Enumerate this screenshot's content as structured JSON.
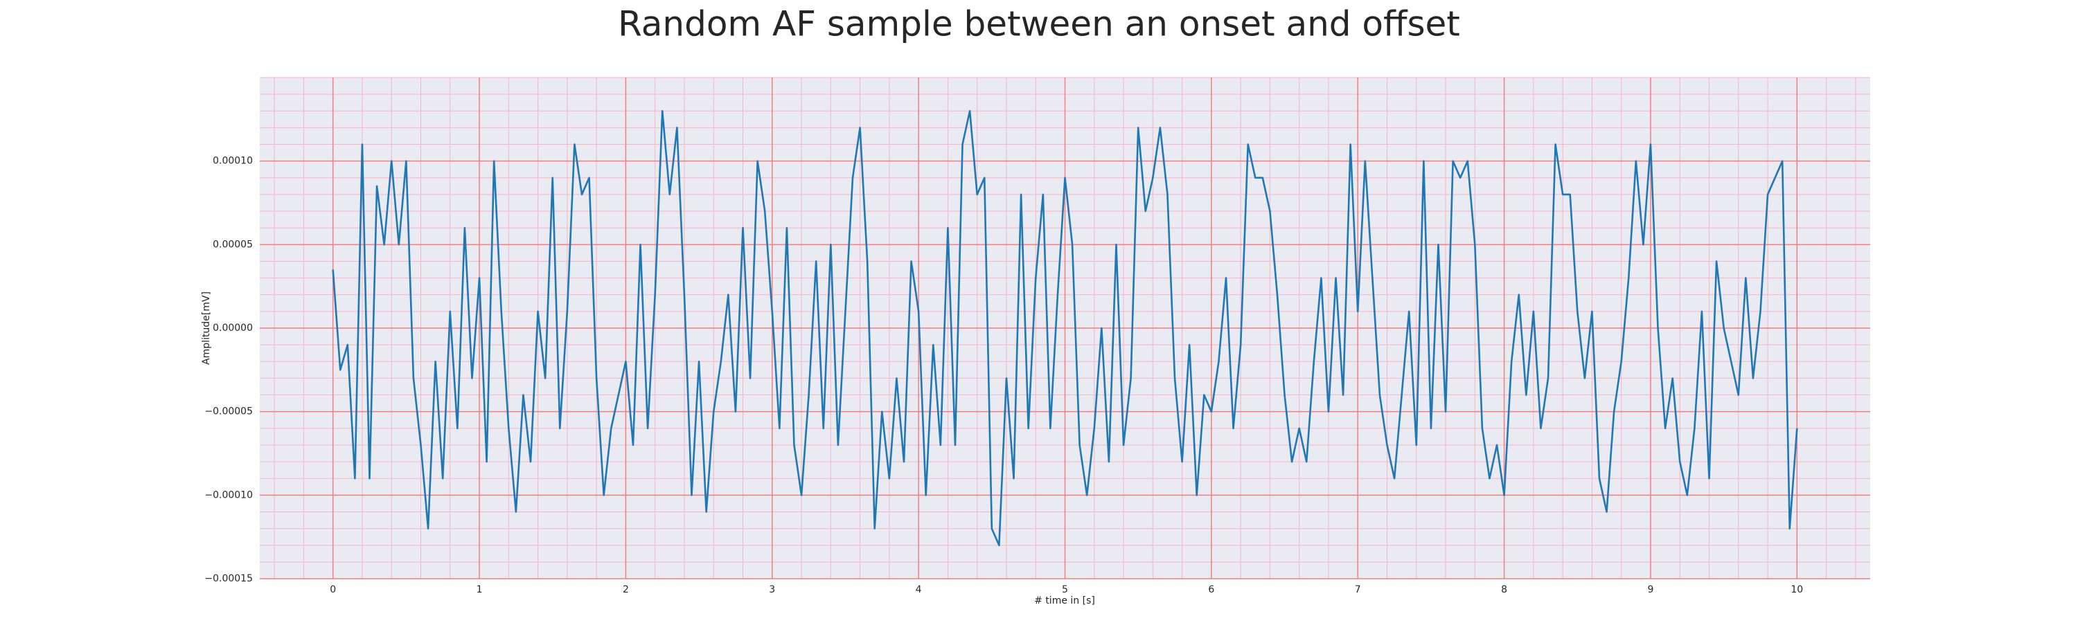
{
  "chart_data": {
    "type": "line",
    "title": "Random AF sample between an onset and offset",
    "xlabel": "# time in [s]",
    "ylabel": "Amplitude[mV]",
    "color": "#1f77b4",
    "xlim": [
      -0.5,
      10.5
    ],
    "ylim": [
      -0.00015,
      0.00015
    ],
    "xticks": [
      0,
      1,
      2,
      3,
      4,
      5,
      6,
      7,
      8,
      9,
      10
    ],
    "yticks": [
      {
        "value": -0.00015,
        "label": "−0.00015"
      },
      {
        "value": -0.0001,
        "label": "−0.00010"
      },
      {
        "value": -5e-05,
        "label": "−0.00005"
      },
      {
        "value": 0,
        "label": "0.00000"
      },
      {
        "value": 5e-05,
        "label": "0.00005"
      },
      {
        "value": 0.0001,
        "label": "0.00010"
      }
    ],
    "grid": true,
    "minor_grid": true,
    "x": [
      0,
      0.05,
      0.1,
      0.15,
      0.2,
      0.25,
      0.3,
      0.35,
      0.4,
      0.45,
      0.5,
      0.55,
      0.6,
      0.65,
      0.7,
      0.75,
      0.8,
      0.85,
      0.9,
      0.95,
      1,
      1.05,
      1.1,
      1.15,
      1.2,
      1.25,
      1.3,
      1.35,
      1.4,
      1.45,
      1.5,
      1.55,
      1.6,
      1.65,
      1.7,
      1.75,
      1.8,
      1.85,
      1.9,
      1.95,
      2,
      2.05,
      2.1,
      2.15,
      2.2,
      2.25,
      2.3,
      2.35,
      2.4,
      2.45,
      2.5,
      2.55,
      2.6,
      2.65,
      2.7,
      2.75,
      2.8,
      2.85,
      2.9,
      2.95,
      3,
      3.05,
      3.1,
      3.15,
      3.2,
      3.25,
      3.3,
      3.35,
      3.4,
      3.45,
      3.5,
      3.55,
      3.6,
      3.65,
      3.7,
      3.75,
      3.8,
      3.85,
      3.9,
      3.95,
      4,
      4.05,
      4.1,
      4.15,
      4.2,
      4.25,
      4.3,
      4.35,
      4.4,
      4.45,
      4.5,
      4.55,
      4.6,
      4.65,
      4.7,
      4.75,
      4.8,
      4.85,
      4.9,
      4.95,
      5,
      5.05,
      5.1,
      5.15,
      5.2,
      5.25,
      5.3,
      5.35,
      5.4,
      5.45,
      5.5,
      5.55,
      5.6,
      5.65,
      5.7,
      5.75,
      5.8,
      5.85,
      5.9,
      5.95,
      6,
      6.05,
      6.1,
      6.15,
      6.2,
      6.25,
      6.3,
      6.35,
      6.4,
      6.45,
      6.5,
      6.55,
      6.6,
      6.65,
      6.7,
      6.75,
      6.8,
      6.85,
      6.9,
      6.95,
      7,
      7.05,
      7.1,
      7.15,
      7.2,
      7.25,
      7.3,
      7.35,
      7.4,
      7.45,
      7.5,
      7.55,
      7.6,
      7.65,
      7.7,
      7.75,
      7.8,
      7.85,
      7.9,
      7.95,
      8,
      8.05,
      8.1,
      8.15,
      8.2,
      8.25,
      8.3,
      8.35,
      8.4,
      8.45,
      8.5,
      8.55,
      8.6,
      8.65,
      8.7,
      8.75,
      8.8,
      8.85,
      8.9,
      8.95,
      9,
      9.05,
      9.1,
      9.15,
      9.2,
      9.25,
      9.3,
      9.35,
      9.4,
      9.45,
      9.5,
      9.55,
      9.6,
      9.65,
      9.7,
      9.75,
      9.8,
      9.85,
      9.9,
      9.95,
      10
    ],
    "values": [
      3.5e-05,
      -2.5e-05,
      -1e-05,
      -9e-05,
      0.00011,
      -9e-05,
      8.5e-05,
      5e-05,
      0.0001,
      5e-05,
      0.0001,
      -3e-05,
      -7e-05,
      -0.00012,
      -2e-05,
      -9e-05,
      1e-05,
      -6e-05,
      6e-05,
      -3e-05,
      3e-05,
      -8e-05,
      0.0001,
      1e-05,
      -6e-05,
      -0.00011,
      -4e-05,
      -8e-05,
      1e-05,
      -3e-05,
      9e-05,
      -6e-05,
      1e-05,
      0.00011,
      8e-05,
      9e-05,
      -3e-05,
      -0.0001,
      -6e-05,
      -4e-05,
      -2e-05,
      -7e-05,
      5e-05,
      -6e-05,
      2e-05,
      0.00013,
      8e-05,
      0.00012,
      2e-05,
      -0.0001,
      -2e-05,
      -0.00011,
      -5e-05,
      -2e-05,
      2e-05,
      -5e-05,
      6e-05,
      -3e-05,
      0.0001,
      7e-05,
      1e-05,
      -6e-05,
      6e-05,
      -7e-05,
      -0.0001,
      -4e-05,
      4e-05,
      -6e-05,
      5e-05,
      -7e-05,
      1e-05,
      9e-05,
      0.00012,
      4e-05,
      -0.00012,
      -5e-05,
      -9e-05,
      -3e-05,
      -8e-05,
      4e-05,
      1e-05,
      -0.0001,
      -1e-05,
      -7e-05,
      6e-05,
      -7e-05,
      0.00011,
      0.00013,
      8e-05,
      9e-05,
      -0.00012,
      -0.00013,
      -3e-05,
      -9e-05,
      8e-05,
      -6e-05,
      3e-05,
      8e-05,
      -6e-05,
      2e-05,
      9e-05,
      5e-05,
      -7e-05,
      -0.0001,
      -6e-05,
      0,
      -8e-05,
      5e-05,
      -7e-05,
      -3e-05,
      0.00012,
      7e-05,
      9e-05,
      0.00012,
      8e-05,
      -3e-05,
      -8e-05,
      -1e-05,
      -0.0001,
      -4e-05,
      -5e-05,
      -2e-05,
      3e-05,
      -6e-05,
      -1e-05,
      0.00011,
      9e-05,
      9e-05,
      7e-05,
      2e-05,
      -4e-05,
      -8e-05,
      -6e-05,
      -8e-05,
      -2e-05,
      3e-05,
      -5e-05,
      3e-05,
      -4e-05,
      0.00011,
      1e-05,
      0.0001,
      3e-05,
      -4e-05,
      -7e-05,
      -9e-05,
      -4e-05,
      1e-05,
      -7e-05,
      0.0001,
      -6e-05,
      5e-05,
      -5e-05,
      0.0001,
      9e-05,
      0.0001,
      5e-05,
      -6e-05,
      -9e-05,
      -7e-05,
      -0.0001,
      -2e-05,
      2e-05,
      -4e-05,
      1e-05,
      -6e-05,
      -3e-05,
      0.00011,
      8e-05,
      8e-05,
      1e-05,
      -3e-05,
      1e-05,
      -9e-05,
      -0.00011,
      -5e-05,
      -2e-05,
      3e-05,
      0.0001,
      5e-05,
      0.00011,
      0,
      -6e-05,
      -3e-05,
      -8e-05,
      -0.0001,
      -6e-05,
      1e-05,
      -9e-05,
      4e-05,
      0,
      -2e-05,
      -4e-05,
      3e-05,
      -3e-05,
      1e-05,
      8e-05,
      9e-05,
      0.0001,
      -0.00012,
      -6e-05
    ]
  }
}
